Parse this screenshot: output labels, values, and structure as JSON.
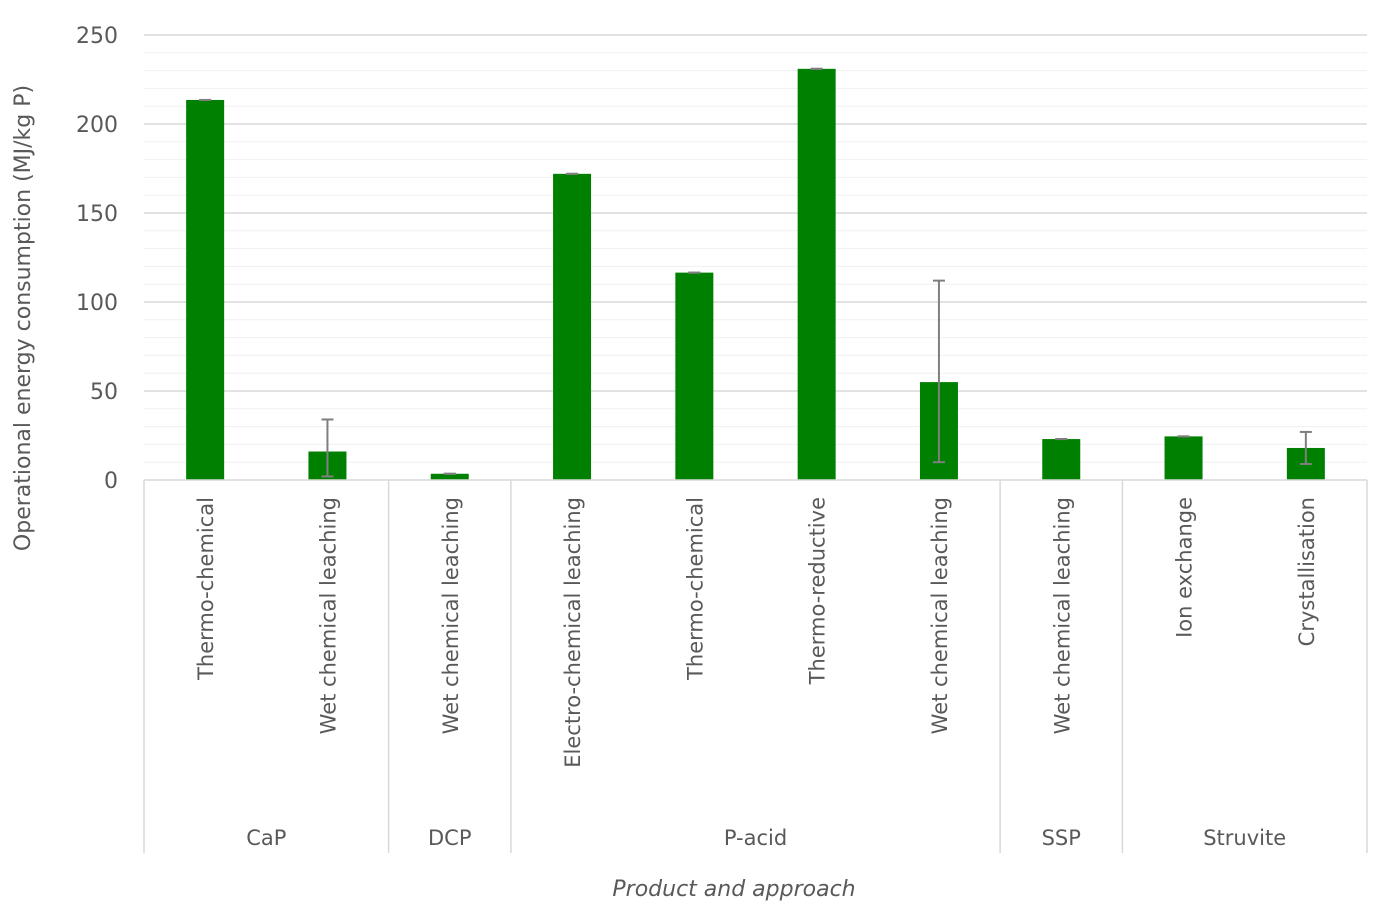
{
  "chart_data": {
    "type": "bar",
    "ylabel": "Operational energy consumption (MJ/kg P)",
    "xlabel": "Product and approach",
    "ylim": [
      0,
      250
    ],
    "yticks": [
      0,
      50,
      100,
      150,
      200,
      250
    ],
    "grid": true,
    "bar_color": "#008000",
    "error_color": "#7f7f7f",
    "groups": [
      {
        "name": "CaP",
        "categories": [
          "Thermo-chemical",
          "Wet chemical leaching"
        ]
      },
      {
        "name": "DCP",
        "categories": [
          "Wet chemical leaching"
        ]
      },
      {
        "name": "P-acid",
        "categories": [
          "Electro-chemical leaching",
          "Thermo-chemical",
          "Thermo-reductive",
          "Wet chemical leaching"
        ]
      },
      {
        "name": "SSP",
        "categories": [
          "Wet chemical leaching"
        ]
      },
      {
        "name": "Struvite",
        "categories": [
          "Ion exchange",
          "Crystallisation"
        ]
      }
    ],
    "values": [
      213.5,
      16,
      3.5,
      172,
      116.5,
      231,
      55,
      23,
      24.5,
      18
    ],
    "error_low": [
      213.5,
      2,
      3.5,
      172,
      116.5,
      231,
      10,
      23,
      24.5,
      9
    ],
    "error_high": [
      213.5,
      34,
      3.5,
      172,
      116.5,
      231,
      112,
      23,
      24.5,
      27
    ]
  }
}
